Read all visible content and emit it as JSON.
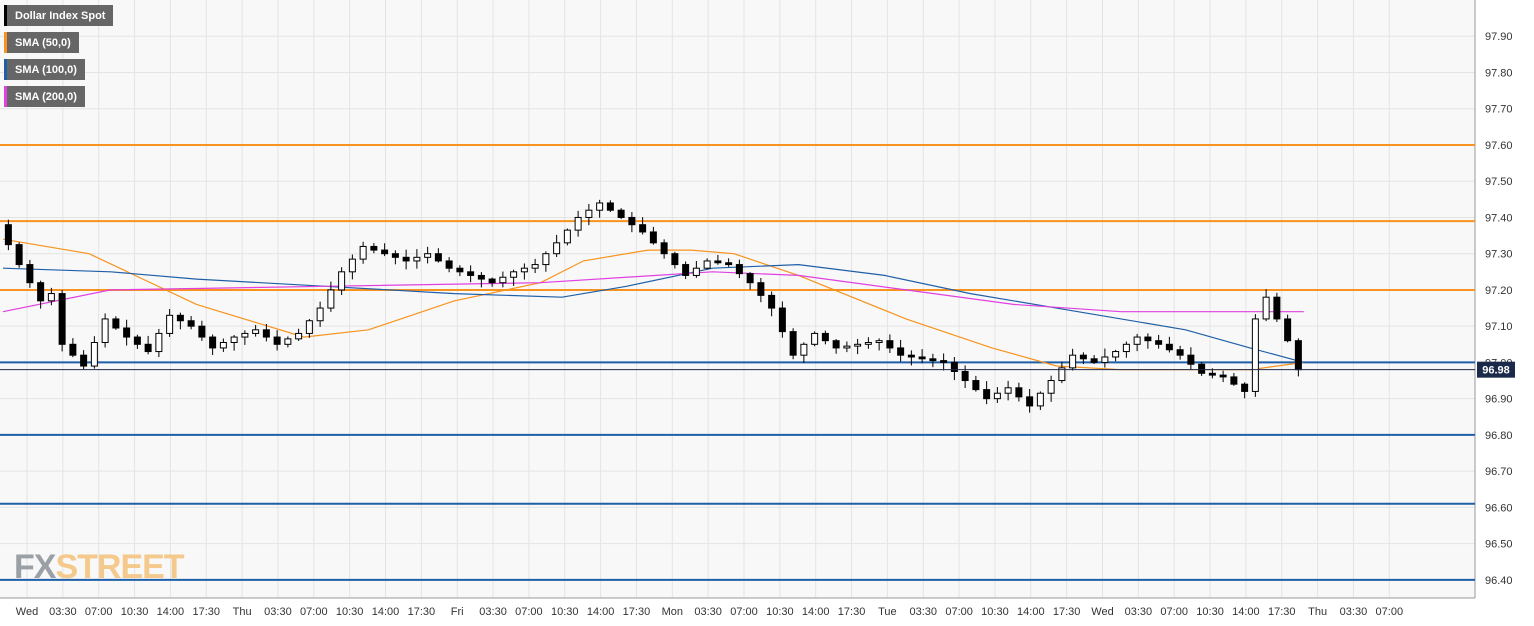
{
  "chart_data": {
    "type": "candlestick",
    "title": "",
    "instrument": "Dollar Index Spot",
    "last_price": "96.98",
    "y_axis": {
      "range": [
        96.35,
        98.0
      ],
      "ticks": [
        "97.90",
        "97.80",
        "97.70",
        "97.60",
        "97.50",
        "97.40",
        "97.30",
        "97.20",
        "97.10",
        "97.00",
        "96.90",
        "96.80",
        "96.70",
        "96.60",
        "96.50",
        "96.40"
      ],
      "tick_values": [
        97.9,
        97.8,
        97.7,
        97.6,
        97.5,
        97.4,
        97.3,
        97.2,
        97.1,
        97.0,
        96.9,
        96.8,
        96.7,
        96.6,
        96.5,
        96.4
      ]
    },
    "x_axis": {
      "ticks": [
        "Wed",
        "03:30",
        "07:00",
        "10:30",
        "14:00",
        "17:30",
        "Thu",
        "03:30",
        "07:00",
        "10:30",
        "14:00",
        "17:30",
        "Fri",
        "03:30",
        "07:00",
        "10:30",
        "14:00",
        "17:30",
        "Mon",
        "03:30",
        "07:00",
        "10:30",
        "14:00",
        "17:30",
        "Tue",
        "03:30",
        "07:00",
        "10:30",
        "14:00",
        "17:30",
        "Wed",
        "03:30",
        "07:00",
        "10:30",
        "14:00",
        "17:30",
        "Thu",
        "03:30",
        "07:00"
      ],
      "tick_index": [
        0,
        1,
        2,
        3,
        4,
        5,
        6,
        7,
        8,
        9,
        10,
        11,
        12,
        13,
        14,
        15,
        16,
        17,
        18,
        19,
        20,
        21,
        22,
        23,
        24,
        25,
        26,
        27,
        28,
        29,
        30,
        31,
        32,
        33,
        34,
        35,
        36,
        37,
        38
      ]
    },
    "grid": true,
    "horizontal_levels": [
      {
        "value": 97.6,
        "color": "#f7931e"
      },
      {
        "value": 97.39,
        "color": "#f7931e"
      },
      {
        "value": 97.2,
        "color": "#f7931e"
      },
      {
        "value": 97.0,
        "color": "#1f5fa8"
      },
      {
        "value": 96.8,
        "color": "#1f5fa8"
      },
      {
        "value": 96.61,
        "color": "#1f5fa8"
      },
      {
        "value": 96.4,
        "color": "#1f5fa8"
      }
    ],
    "price_path": [
      [
        0,
        97.38
      ],
      [
        2,
        97.27
      ],
      [
        4,
        97.17
      ],
      [
        5,
        97.19
      ],
      [
        6,
        97.05
      ],
      [
        8,
        96.99
      ],
      [
        10,
        97.12
      ],
      [
        12,
        97.07
      ],
      [
        14,
        97.03
      ],
      [
        16,
        97.13
      ],
      [
        18,
        97.1
      ],
      [
        20,
        97.04
      ],
      [
        22,
        97.07
      ],
      [
        24,
        97.09
      ],
      [
        26,
        97.05
      ],
      [
        28,
        97.08
      ],
      [
        30,
        97.15
      ],
      [
        32,
        97.25
      ],
      [
        34,
        97.32
      ],
      [
        36,
        97.3
      ],
      [
        38,
        97.28
      ],
      [
        40,
        97.3
      ],
      [
        42,
        97.26
      ],
      [
        44,
        97.24
      ],
      [
        46,
        97.22
      ],
      [
        48,
        97.25
      ],
      [
        50,
        97.27
      ],
      [
        52,
        97.33
      ],
      [
        54,
        97.4
      ],
      [
        56,
        97.44
      ],
      [
        58,
        97.4
      ],
      [
        60,
        97.36
      ],
      [
        62,
        97.3
      ],
      [
        64,
        97.24
      ],
      [
        66,
        97.28
      ],
      [
        68,
        97.27
      ],
      [
        70,
        97.22
      ],
      [
        72,
        97.15
      ],
      [
        74,
        97.02
      ],
      [
        76,
        97.08
      ],
      [
        78,
        97.04
      ],
      [
        80,
        97.05
      ],
      [
        82,
        97.06
      ],
      [
        84,
        97.02
      ],
      [
        86,
        97.01
      ],
      [
        88,
        97.0
      ],
      [
        90,
        96.95
      ],
      [
        92,
        96.9
      ],
      [
        94,
        96.93
      ],
      [
        96,
        96.88
      ],
      [
        98,
        96.95
      ],
      [
        100,
        97.02
      ],
      [
        102,
        97.0
      ],
      [
        104,
        97.03
      ],
      [
        106,
        97.07
      ],
      [
        108,
        97.05
      ],
      [
        110,
        97.02
      ],
      [
        112,
        96.97
      ],
      [
        114,
        96.96
      ],
      [
        116,
        96.92
      ],
      [
        117,
        97.12
      ],
      [
        118,
        97.18
      ],
      [
        120,
        97.06
      ],
      [
        121,
        96.98
      ]
    ],
    "series": [
      {
        "name": "SMA (50,0)",
        "color": "#f7931e",
        "values": [
          [
            0,
            97.34
          ],
          [
            8,
            97.3
          ],
          [
            18,
            97.16
          ],
          [
            28,
            97.07
          ],
          [
            34,
            97.09
          ],
          [
            42,
            97.17
          ],
          [
            50,
            97.22
          ],
          [
            54,
            97.28
          ],
          [
            60,
            97.31
          ],
          [
            64,
            97.31
          ],
          [
            68,
            97.3
          ],
          [
            74,
            97.24
          ],
          [
            84,
            97.12
          ],
          [
            92,
            97.04
          ],
          [
            98,
            96.99
          ],
          [
            104,
            96.98
          ],
          [
            110,
            96.98
          ],
          [
            116,
            96.98
          ],
          [
            121,
            97.0
          ]
        ]
      },
      {
        "name": "SMA (100,0)",
        "color": "#1f5fa8",
        "values": [
          [
            0,
            97.26
          ],
          [
            10,
            97.25
          ],
          [
            18,
            97.23
          ],
          [
            30,
            97.21
          ],
          [
            42,
            97.19
          ],
          [
            52,
            97.18
          ],
          [
            58,
            97.21
          ],
          [
            66,
            97.26
          ],
          [
            74,
            97.27
          ],
          [
            82,
            97.24
          ],
          [
            90,
            97.19
          ],
          [
            100,
            97.14
          ],
          [
            110,
            97.09
          ],
          [
            116,
            97.04
          ],
          [
            121,
            97.0
          ]
        ]
      },
      {
        "name": "SMA (200,0)",
        "color": "#e040e0",
        "values": [
          [
            0,
            97.14
          ],
          [
            10,
            97.2
          ],
          [
            30,
            97.21
          ],
          [
            50,
            97.22
          ],
          [
            66,
            97.25
          ],
          [
            74,
            97.24
          ],
          [
            84,
            97.2
          ],
          [
            94,
            97.16
          ],
          [
            104,
            97.14
          ],
          [
            116,
            97.14
          ],
          [
            121,
            97.14
          ]
        ]
      }
    ]
  },
  "legend": {
    "items": [
      {
        "label": "Dollar Index Spot",
        "color": "#000000"
      },
      {
        "label": "SMA (50,0)",
        "color": "#f7931e"
      },
      {
        "label": "SMA (100,0)",
        "color": "#1f5fa8"
      },
      {
        "label": "SMA (200,0)",
        "color": "#e040e0"
      }
    ]
  },
  "logo": {
    "part1": "FX",
    "part2": "STREET"
  }
}
